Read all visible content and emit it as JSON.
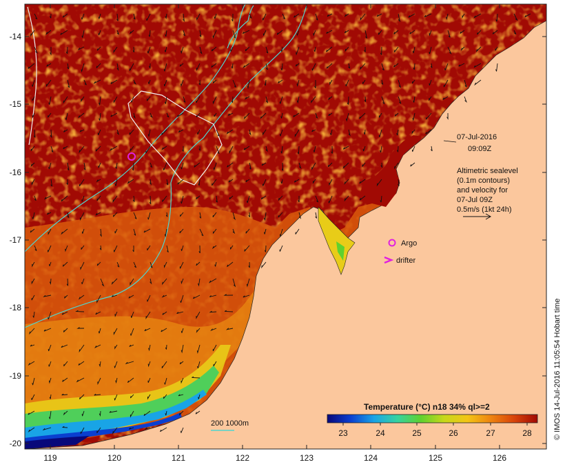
{
  "map": {
    "date_line": "07-Jul-2016",
    "time_line": "09:09Z",
    "altimetry_lines": [
      "Altimetric sealevel",
      "(0.1m contours)",
      "and velocity for",
      "07-Jul 09Z",
      "0.5m/s (1kt 24h)"
    ],
    "argo_label": "Argo",
    "drifter_label": "drifter",
    "isobath_label": "200  1000m",
    "credit": "© IMOS 14-Jul-2016 11:05:54 Hobart time",
    "y_ticks": [
      "-14",
      "-15",
      "-16",
      "-17",
      "-18",
      "-19",
      "-20"
    ],
    "x_ticks": [
      "119",
      "120",
      "121",
      "122",
      "123",
      "124",
      "125",
      "126"
    ],
    "colorbar": {
      "title": "Temperature (°C) n18 34% ql>=2",
      "ticks": [
        "23",
        "24",
        "25",
        "26",
        "27",
        "28"
      ],
      "colors": [
        "#08087a",
        "#0a3fd0",
        "#19a4e6",
        "#36d3a0",
        "#5fd12f",
        "#c7d81a",
        "#f3c516",
        "#ee8410",
        "#d8440a",
        "#a10a04"
      ]
    },
    "colors": {
      "land": "#fbc79d",
      "sea_warm": "#a10a04",
      "sea_mid": "#d8440a",
      "argo": "#e020e0",
      "isobath": "#4fd6cf",
      "box": "#f3f3f3"
    }
  }
}
